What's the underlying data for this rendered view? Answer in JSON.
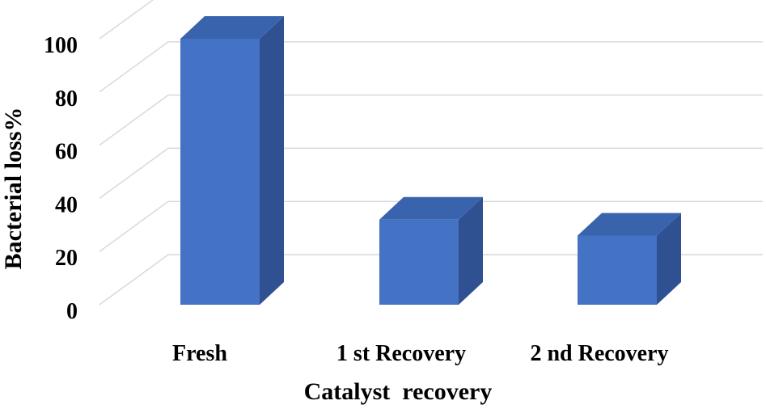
{
  "chart_data": {
    "type": "bar",
    "style": "3d-column",
    "categories": [
      "Fresh",
      "1 st Recovery",
      "2 nd Recovery"
    ],
    "values": [
      100,
      32,
      26
    ],
    "xlabel": "Catalyst  recovery",
    "ylabel": "Bacterial loss%",
    "ylim": [
      0,
      100
    ],
    "yticks": [
      0,
      20,
      40,
      60,
      80,
      100
    ],
    "grid": true,
    "legend": "none",
    "colors": {
      "bar_front": "#4472C4",
      "bar_side": "#2F5191",
      "bar_top": "#3A63AE",
      "grid": "#D9D9D9"
    }
  }
}
